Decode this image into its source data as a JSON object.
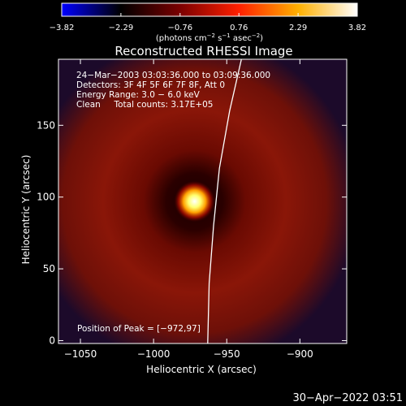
{
  "chart_data": {
    "type": "heatmap",
    "title": "Reconstructed RHESSI Image",
    "xlabel": "Heliocentric X (arcsec)",
    "ylabel": "Heliocentric Y (arcsec)",
    "xlim": [
      -1065,
      -868
    ],
    "ylim": [
      -2,
      196
    ],
    "x_ticks": [
      -1050,
      -1000,
      -950,
      -900
    ],
    "x_tick_labels": [
      "−1050",
      "−1000",
      "−950",
      "−900"
    ],
    "y_ticks": [
      0,
      50,
      100,
      150
    ],
    "y_tick_labels": [
      "0",
      "50",
      "100",
      "150"
    ],
    "colorbar": {
      "min": -3.82,
      "max": 3.82,
      "ticks": [
        -3.82,
        -2.29,
        -0.76,
        0.76,
        2.29,
        3.82
      ],
      "tick_labels": [
        "−3.82",
        "−2.29",
        "−0.76",
        "0.76",
        "2.29",
        "3.82"
      ],
      "unit_parts": [
        "(photons cm",
        "−2",
        " s",
        "−1",
        " asec",
        "−2",
        ")"
      ],
      "colors": [
        "#0000ff",
        "#000000",
        "#7a0000",
        "#ff2000",
        "#ffb000",
        "#ffffff"
      ]
    },
    "annotations": [
      "24−Mar−2003 03:03:36.000 to 03:09:36.000",
      "Detectors: 3F 4F 5F 6F 7F 8F, Att 0",
      "Energy Range: 3.0 − 6.0 keV",
      "Clean     Total counts: 3.17E+05"
    ],
    "peak_label": "Position of Peak = [−972,97]",
    "peak": {
      "x": -972,
      "y": 97
    },
    "limb_line": [
      {
        "x": -940,
        "y": 196
      },
      {
        "x": -948,
        "y": 160
      },
      {
        "x": -955,
        "y": 120
      },
      {
        "x": -959,
        "y": 80
      },
      {
        "x": -962,
        "y": 40
      },
      {
        "x": -963,
        "y": -2
      }
    ],
    "ring": {
      "center_x": -972,
      "center_y": 97,
      "inner_radius": 35,
      "outer_radius": 90
    }
  },
  "footer": {
    "timestamp": "30−Apr−2022 03:51"
  }
}
